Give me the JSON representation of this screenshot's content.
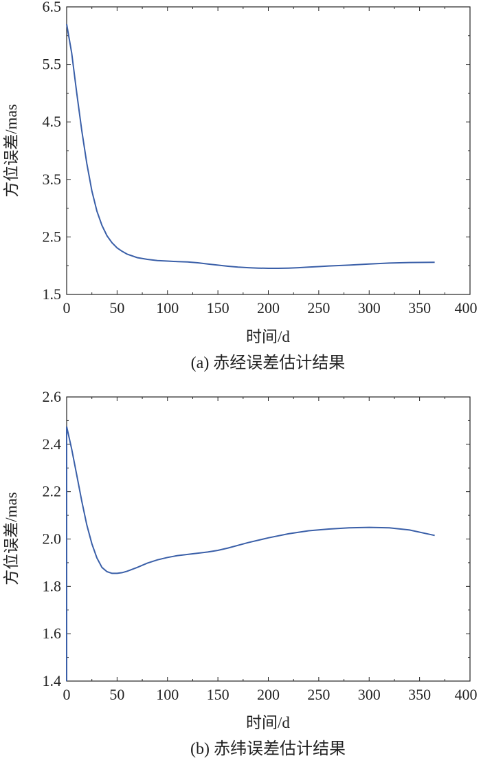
{
  "chart_data": [
    {
      "type": "line",
      "caption": "(a) 赤经误差估计结果",
      "xlabel": "时间/d",
      "ylabel": "方位误差/mas",
      "xlim": [
        0,
        400
      ],
      "ylim": [
        1.5,
        6.5
      ],
      "xticks": [
        "0",
        "50",
        "100",
        "150",
        "200",
        "250",
        "300",
        "350",
        "400"
      ],
      "yticks": [
        "1.5",
        "2.5",
        "3.5",
        "4.5",
        "5.5",
        "6.5"
      ],
      "xtick_values": [
        0,
        50,
        100,
        150,
        200,
        250,
        300,
        350,
        400
      ],
      "ytick_values": [
        1.5,
        2.5,
        3.5,
        4.5,
        5.5,
        6.5
      ],
      "grid": false,
      "series": [
        {
          "color": "#3a5fa8",
          "x": [
            0,
            5,
            10,
            15,
            20,
            25,
            30,
            35,
            40,
            45,
            50,
            55,
            60,
            70,
            80,
            90,
            100,
            110,
            120,
            130,
            140,
            150,
            160,
            170,
            180,
            190,
            200,
            210,
            220,
            230,
            240,
            250,
            260,
            280,
            300,
            320,
            340,
            365
          ],
          "y": [
            6.2,
            5.7,
            5.0,
            4.35,
            3.78,
            3.3,
            2.95,
            2.7,
            2.52,
            2.4,
            2.31,
            2.25,
            2.2,
            2.14,
            2.11,
            2.09,
            2.08,
            2.07,
            2.065,
            2.05,
            2.03,
            2.01,
            1.99,
            1.975,
            1.965,
            1.958,
            1.955,
            1.955,
            1.958,
            1.965,
            1.975,
            1.985,
            1.995,
            2.01,
            2.03,
            2.045,
            2.055,
            2.06
          ]
        }
      ]
    },
    {
      "type": "line",
      "caption": "(b) 赤纬误差估计结果",
      "xlabel": "时间/d",
      "ylabel": "方位误差/mas",
      "xlim": [
        0,
        400
      ],
      "ylim": [
        1.4,
        2.6
      ],
      "xticks": [
        "0",
        "50",
        "100",
        "150",
        "200",
        "250",
        "300",
        "350",
        "400"
      ],
      "yticks": [
        "1.4",
        "1.6",
        "1.8",
        "2.0",
        "2.2",
        "2.4",
        "2.6"
      ],
      "xtick_values": [
        0,
        50,
        100,
        150,
        200,
        250,
        300,
        350,
        400
      ],
      "ytick_values": [
        1.4,
        1.6,
        1.8,
        2.0,
        2.2,
        2.4,
        2.6
      ],
      "grid": false,
      "series": [
        {
          "color": "#3a5fa8",
          "x": [
            0,
            0,
            5,
            10,
            15,
            20,
            25,
            30,
            35,
            40,
            45,
            50,
            55,
            60,
            70,
            80,
            90,
            100,
            110,
            120,
            130,
            140,
            150,
            160,
            180,
            200,
            220,
            240,
            260,
            280,
            300,
            320,
            340,
            365
          ],
          "y": [
            1.4,
            2.475,
            2.38,
            2.27,
            2.16,
            2.06,
            1.98,
            1.92,
            1.88,
            1.862,
            1.855,
            1.855,
            1.858,
            1.864,
            1.88,
            1.898,
            1.912,
            1.922,
            1.93,
            1.935,
            1.94,
            1.945,
            1.952,
            1.962,
            1.985,
            2.005,
            2.022,
            2.035,
            2.042,
            2.047,
            2.049,
            2.047,
            2.038,
            2.015
          ]
        }
      ]
    }
  ]
}
